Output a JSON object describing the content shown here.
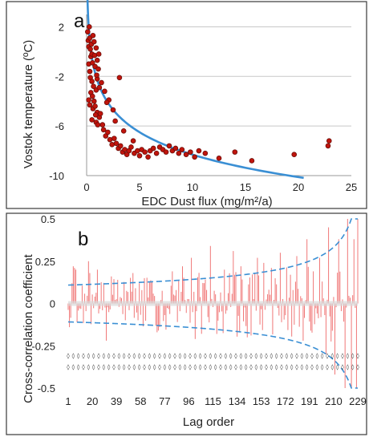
{
  "chart_data": [
    {
      "panel": "a",
      "type": "scatter",
      "xlabel": "EDC Dust flux (mg/m²/a)",
      "ylabel": "Vostok temperature (ºC)",
      "xlim": [
        0,
        25
      ],
      "ylim": [
        -10,
        3
      ],
      "x_ticks": [
        "0",
        "5",
        "10",
        "15",
        "20",
        "25"
      ],
      "y_ticks": [
        "2",
        "-2",
        "-6",
        "-10"
      ],
      "y_tick_values": [
        2,
        -2,
        -6,
        -10
      ],
      "x_tick_values": [
        0,
        5,
        10,
        15,
        20,
        25
      ],
      "point_color": "#c0140c",
      "fit_color": "#3a8fd4",
      "points": [
        [
          0.1,
          1.6
        ],
        [
          0.15,
          0.9
        ],
        [
          0.2,
          0.4
        ],
        [
          0.25,
          2.0
        ],
        [
          0.3,
          1.1
        ],
        [
          0.35,
          0.2
        ],
        [
          0.4,
          -0.4
        ],
        [
          0.2,
          -1.0
        ],
        [
          0.3,
          -1.6
        ],
        [
          0.45,
          0.6
        ],
        [
          0.5,
          -0.2
        ],
        [
          0.55,
          -0.9
        ],
        [
          0.6,
          1.3
        ],
        [
          0.7,
          0.8
        ],
        [
          0.75,
          -0.3
        ],
        [
          0.8,
          -1.2
        ],
        [
          0.9,
          0.3
        ],
        [
          1.0,
          -0.7
        ],
        [
          1.1,
          -1.4
        ],
        [
          0.35,
          -2.1
        ],
        [
          0.5,
          -2.4
        ],
        [
          0.65,
          -2.8
        ],
        [
          0.4,
          -3.3
        ],
        [
          0.55,
          -3.6
        ],
        [
          0.7,
          -4.0
        ],
        [
          0.9,
          -3.1
        ],
        [
          0.3,
          -4.3
        ],
        [
          0.6,
          -4.6
        ],
        [
          0.8,
          -4.4
        ],
        [
          1.0,
          -4.9
        ],
        [
          1.2,
          -5.3
        ],
        [
          0.5,
          -5.5
        ],
        [
          0.9,
          -5.7
        ],
        [
          1.3,
          -5.0
        ],
        [
          1.5,
          -5.9
        ],
        [
          1.6,
          -6.3
        ],
        [
          1.8,
          -6.8
        ],
        [
          2.0,
          -6.5
        ],
        [
          2.2,
          -7.1
        ],
        [
          2.4,
          -7.5
        ],
        [
          2.6,
          -7.0
        ],
        [
          2.8,
          -7.4
        ],
        [
          3.0,
          -7.8
        ],
        [
          3.2,
          -7.6
        ],
        [
          3.4,
          -8.1
        ],
        [
          3.6,
          -7.9
        ],
        [
          3.8,
          -8.3
        ],
        [
          4.0,
          -8.0
        ],
        [
          4.2,
          -7.7
        ],
        [
          4.5,
          -8.2
        ],
        [
          4.8,
          -8.0
        ],
        [
          5.0,
          -8.4
        ],
        [
          5.2,
          -7.9
        ],
        [
          5.5,
          -8.1
        ],
        [
          5.8,
          -8.5
        ],
        [
          6.0,
          -8.0
        ],
        [
          6.3,
          -7.8
        ],
        [
          6.6,
          -8.2
        ],
        [
          6.9,
          -7.7
        ],
        [
          7.2,
          -7.9
        ],
        [
          7.5,
          -8.1
        ],
        [
          7.8,
          -7.6
        ],
        [
          8.1,
          -8.0
        ],
        [
          8.4,
          -7.8
        ],
        [
          8.7,
          -8.2
        ],
        [
          9.0,
          -7.9
        ],
        [
          9.4,
          -8.3
        ],
        [
          9.8,
          -8.1
        ],
        [
          10.2,
          -8.5
        ],
        [
          10.6,
          -8.0
        ],
        [
          11.2,
          -8.2
        ],
        [
          12.5,
          -8.6
        ],
        [
          14.0,
          -8.1
        ],
        [
          15.6,
          -8.8
        ],
        [
          19.6,
          -8.3
        ],
        [
          22.8,
          -7.6
        ],
        [
          22.9,
          -7.2
        ],
        [
          1.0,
          -2.2
        ],
        [
          1.2,
          -2.9
        ],
        [
          1.4,
          -2.5
        ],
        [
          1.7,
          -3.2
        ],
        [
          2.1,
          -3.9
        ],
        [
          2.5,
          -4.7
        ],
        [
          3.1,
          -2.1
        ],
        [
          2.7,
          -5.6
        ],
        [
          1.9,
          -4.1
        ],
        [
          3.5,
          -6.4
        ],
        [
          4.4,
          -7.2
        ],
        [
          0.95,
          -1.9
        ],
        [
          1.15,
          -0.2
        ],
        [
          0.2,
          -3.9
        ],
        [
          0.85,
          -5.1
        ],
        [
          1.05,
          -5.9
        ]
      ],
      "fit_curve": {
        "model": "logarithmic",
        "a": -2.61,
        "b": -2.3,
        "x_range": [
          0.07,
          20.5
        ]
      }
    },
    {
      "panel": "b",
      "type": "bar",
      "xlabel": "Lag order",
      "ylabel": "Cross-correlation coefficient",
      "xlim": [
        1,
        229
      ],
      "ylim": [
        -0.5,
        0.5
      ],
      "x_ticks": [
        "1",
        "20",
        "39",
        "58",
        "77",
        "96",
        "115",
        "134",
        "153",
        "172",
        "191",
        "210",
        "229"
      ],
      "x_tick_values": [
        1,
        20,
        39,
        58,
        77,
        96,
        115,
        134,
        153,
        172,
        191,
        210,
        229
      ],
      "y_ticks": [
        "0.5",
        "0.25",
        "0",
        "-0.25",
        "-0.5"
      ],
      "y_tick_values": [
        0.5,
        0.25,
        0,
        -0.25,
        -0.5
      ],
      "bar_color": "#f07878",
      "bound_color": "#3a8fd4",
      "lags": 229,
      "bound_base": 0.11,
      "bound_shape": "grows toward end of lags (≈ base*sqrt(N/(N-k)))",
      "highlight_values": {
        "5": 0.22,
        "6": 0.21,
        "7": 0.2,
        "17": 0.25,
        "18": 0.18,
        "24": 0.2,
        "31": -0.22,
        "35": 0.16,
        "40": 0.14,
        "52": 0.18,
        "61": 0.15,
        "72": -0.16,
        "83": 0.19,
        "91": 0.22,
        "98": 0.27,
        "101": -0.21,
        "108": 0.12,
        "113": 0.34,
        "118": -0.18,
        "124": 0.2,
        "131": 0.31,
        "137": 0.22,
        "142": -0.2,
        "150": 0.27,
        "155": 0.24,
        "161": 0.21,
        "168": 0.3,
        "176": 0.17,
        "181": 0.28,
        "186": -0.22,
        "189": 0.38,
        "194": 0.19,
        "199": 0.27,
        "204": -0.3,
        "206": 0.45,
        "211": -0.42,
        "214": 0.38,
        "219": -0.5,
        "221": 0.5,
        "224": -0.5,
        "226": 0.38,
        "228": -0.5,
        "229": 0.5
      },
      "seed": 12345
    }
  ],
  "labels": {
    "a_letter": "a",
    "b_letter": "b",
    "a_xlabel": "EDC Dust flux (mg/m²/a)",
    "a_ylabel": "Vostok temperature (ºC)",
    "b_xlabel": "Lag order",
    "b_ylabel": "Cross-correlation coefficient"
  }
}
